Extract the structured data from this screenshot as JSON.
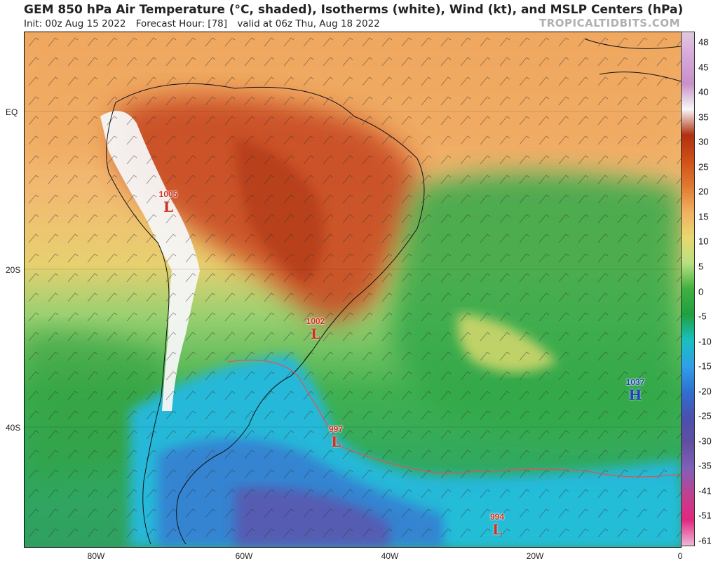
{
  "header": {
    "title": "GEM 850 hPa Air Temperature (°C, shaded), Isotherms (white), Wind (kt), and MSLP Centers (hPa)",
    "init": "Init: 00z Aug 15 2022",
    "forecast_hour": "Forecast Hour: [78]",
    "valid": "valid at 06z Thu, Aug 18 2022",
    "brand": "TROPICALTIDBITS.COM"
  },
  "axes": {
    "lat_labels": [
      "EQ",
      "20S",
      "40S"
    ],
    "lon_labels": [
      "80W",
      "60W",
      "40W",
      "20W",
      "0"
    ]
  },
  "colorbar": {
    "labels": [
      "48",
      "45",
      "40",
      "35",
      "30",
      "25",
      "20",
      "15",
      "10",
      "5",
      "0",
      "-5",
      "-10",
      "-15",
      "-20",
      "-25",
      "-30",
      "-35",
      "-41",
      "-51",
      "-61"
    ],
    "colors": [
      "#e0c8e0",
      "#d5a6d8",
      "#c890c8",
      "#f8f8f8",
      "#b03010",
      "#d05018",
      "#e07a30",
      "#f0b060",
      "#e8d870",
      "#b8e080",
      "#40b040",
      "#20a040",
      "#18c0c0",
      "#30a0e8",
      "#3070d0",
      "#4a50b0",
      "#6050a0",
      "#8060b8",
      "#c04090",
      "#e02880",
      "#f0b8d8"
    ]
  },
  "centers": [
    {
      "type": "L",
      "pressure": "1005",
      "color": "#d03020"
    },
    {
      "type": "L",
      "pressure": "1002",
      "color": "#d03020"
    },
    {
      "type": "L",
      "pressure": "997",
      "color": "#d03020"
    },
    {
      "type": "H",
      "pressure": "1037",
      "color": "#2040c0"
    },
    {
      "type": "L",
      "pressure": "994",
      "color": "#d03020"
    }
  ]
}
